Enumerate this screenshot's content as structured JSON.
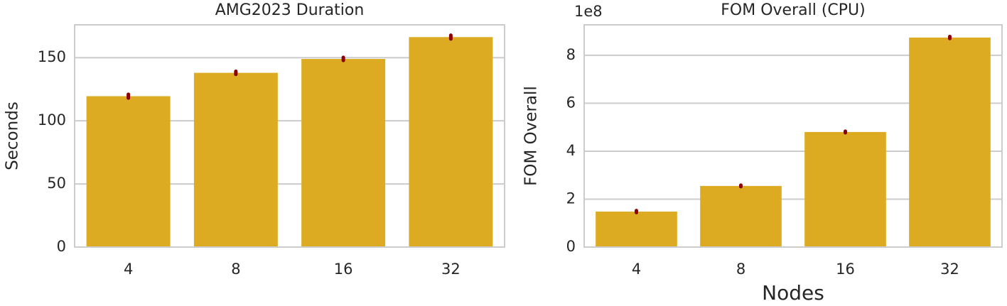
{
  "chart_data": [
    {
      "type": "bar",
      "title": "AMG2023 Duration",
      "ylabel": "Seconds",
      "categories": [
        "4",
        "8",
        "16",
        "32"
      ],
      "values": [
        119.5,
        138,
        149,
        166.3
      ],
      "errors": [
        1.5,
        1.2,
        1.2,
        1.5
      ],
      "color": "#dcab22",
      "error_color": "#8b0000",
      "ylim": [
        0,
        176
      ],
      "yticks": [
        0,
        50,
        100,
        150
      ],
      "grid": true
    },
    {
      "type": "bar",
      "title": "FOM Overall (CPU)",
      "ylabel": "FOM Overall",
      "xlabel": "Nodes",
      "offset_text": "1e8",
      "categories": [
        "4",
        "8",
        "16",
        "32"
      ],
      "values": [
        148000000,
        255000000,
        480000000,
        874000000
      ],
      "errors": [
        4000000,
        3000000,
        3000000,
        4000000
      ],
      "color": "#dcab22",
      "error_color": "#8b0000",
      "ylim": [
        0,
        927000000
      ],
      "yticks": [
        {
          "value": 0,
          "label": "0"
        },
        {
          "value": 200000000,
          "label": "2"
        },
        {
          "value": 400000000,
          "label": "4"
        },
        {
          "value": 600000000,
          "label": "6"
        },
        {
          "value": 800000000,
          "label": "8"
        }
      ],
      "grid": true
    }
  ]
}
